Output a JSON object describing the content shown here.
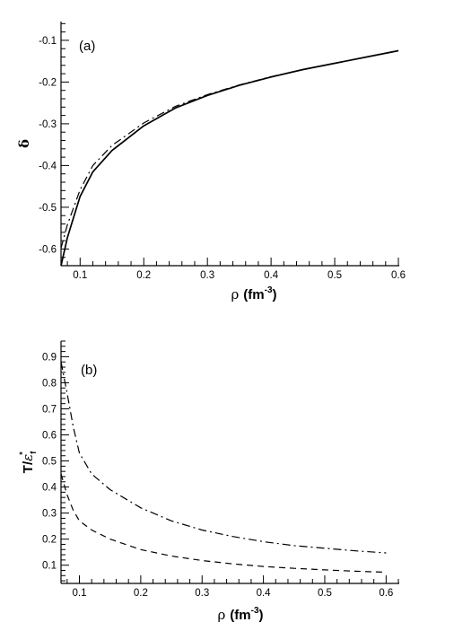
{
  "chart_data": [
    {
      "type": "line",
      "panel_label": "(a)",
      "title": "",
      "xlabel": {
        "symbol": "ρ",
        "text": "(fm",
        "exp": "-3",
        "close": ")"
      },
      "ylabel": {
        "symbol": "δ"
      },
      "xlim": [
        0.07,
        0.6
      ],
      "ylim": [
        -0.64,
        -0.055
      ],
      "xticks": [
        0.1,
        0.2,
        0.3,
        0.4,
        0.5,
        0.6
      ],
      "xtick_labels": [
        "0.1",
        "0.2",
        "0.3",
        "0.4",
        "0.5",
        "0.6"
      ],
      "yticks": [
        -0.6,
        -0.5,
        -0.4,
        -0.3,
        -0.2,
        -0.1
      ],
      "ytick_labels": [
        "-0.6",
        "-0.5",
        "-0.4",
        "-0.3",
        "-0.2",
        "-0.1"
      ],
      "grid": false,
      "series": [
        {
          "style": "solid",
          "x": [
            0.07,
            0.08,
            0.09,
            0.1,
            0.12,
            0.15,
            0.2,
            0.25,
            0.3,
            0.35,
            0.4,
            0.45,
            0.5,
            0.55,
            0.6
          ],
          "y": [
            -0.64,
            -0.573,
            -0.523,
            -0.474,
            -0.415,
            -0.364,
            -0.305,
            -0.262,
            -0.232,
            -0.208,
            -0.188,
            -0.17,
            -0.155,
            -0.14,
            -0.125
          ]
        },
        {
          "style": "dashdot",
          "x": [
            0.07,
            0.08,
            0.09,
            0.1,
            0.12,
            0.15,
            0.2,
            0.25,
            0.3,
            0.35,
            0.4,
            0.45,
            0.5,
            0.55,
            0.6
          ],
          "y": [
            -0.598,
            -0.542,
            -0.5,
            -0.458,
            -0.4,
            -0.352,
            -0.298,
            -0.258,
            -0.23,
            -0.207,
            -0.187,
            -0.17,
            -0.155,
            -0.14,
            -0.125
          ]
        }
      ]
    },
    {
      "type": "line",
      "panel_label": "(b)",
      "title": "",
      "xlabel": {
        "symbol": "ρ",
        "text": "(fm",
        "exp": "-3",
        "close": ")"
      },
      "ylabel": {
        "main": "T/",
        "symbol": "ε",
        "sub": "f",
        "sup": "*"
      },
      "xlim": [
        0.07,
        0.62
      ],
      "ylim": [
        0.03,
        0.96
      ],
      "xticks": [
        0.1,
        0.2,
        0.3,
        0.4,
        0.5,
        0.6
      ],
      "xtick_labels": [
        "0.1",
        "0.2",
        "0.3",
        "0.4",
        "0.5",
        "0.6"
      ],
      "yticks": [
        0.1,
        0.2,
        0.3,
        0.4,
        0.5,
        0.6,
        0.7,
        0.8,
        0.9
      ],
      "ytick_labels": [
        "0.1",
        "0.2",
        "0.3",
        "0.4",
        "0.5",
        "0.6",
        "0.7",
        "0.8",
        "0.9"
      ],
      "grid": false,
      "series": [
        {
          "style": "dashdot",
          "x": [
            0.07,
            0.08,
            0.09,
            0.1,
            0.12,
            0.15,
            0.2,
            0.25,
            0.3,
            0.35,
            0.4,
            0.45,
            0.5,
            0.55,
            0.6
          ],
          "y": [
            0.88,
            0.76,
            0.63,
            0.53,
            0.45,
            0.39,
            0.32,
            0.27,
            0.235,
            0.21,
            0.19,
            0.175,
            0.165,
            0.155,
            0.147
          ]
        },
        {
          "style": "dashed",
          "x": [
            0.07,
            0.08,
            0.09,
            0.1,
            0.12,
            0.15,
            0.2,
            0.25,
            0.3,
            0.35,
            0.4,
            0.45,
            0.5,
            0.55,
            0.6
          ],
          "y": [
            0.45,
            0.37,
            0.31,
            0.27,
            0.235,
            0.2,
            0.16,
            0.135,
            0.118,
            0.105,
            0.095,
            0.088,
            0.082,
            0.077,
            0.073
          ]
        }
      ]
    }
  ]
}
